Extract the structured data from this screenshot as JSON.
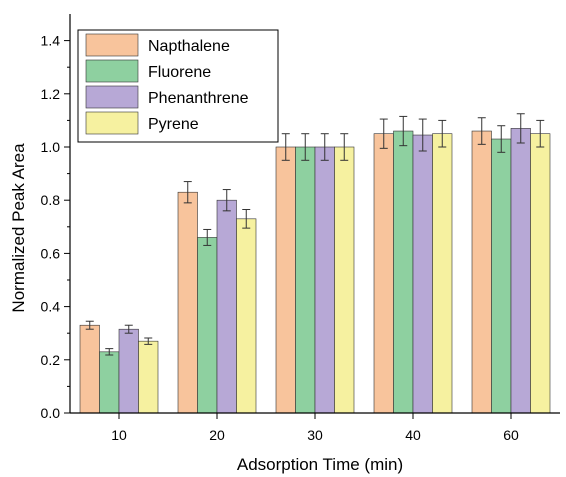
{
  "chart_data": {
    "type": "bar",
    "xlabel": "Adsorption Time (min)",
    "ylabel": "Normalized Peak Area",
    "categories": [
      "10",
      "20",
      "30",
      "40",
      "60"
    ],
    "ylim": [
      0,
      1.5
    ],
    "yticks": [
      0.0,
      0.2,
      0.4,
      0.6,
      0.8,
      1.0,
      1.2,
      1.4
    ],
    "ytick_labels": [
      "0.0",
      "0.2",
      "0.4",
      "0.6",
      "0.8",
      "1.0",
      "1.2",
      "1.4"
    ],
    "grid": false,
    "legend_position": "top-left",
    "error_bars": true,
    "series": [
      {
        "name": "Napthalene",
        "color": "#F8C49C",
        "values": [
          0.33,
          0.83,
          1.0,
          1.05,
          1.06
        ],
        "errors": [
          0.015,
          0.04,
          0.05,
          0.055,
          0.05
        ]
      },
      {
        "name": "Fluorene",
        "color": "#8ED0A0",
        "values": [
          0.23,
          0.66,
          1.0,
          1.06,
          1.03
        ],
        "errors": [
          0.012,
          0.03,
          0.05,
          0.055,
          0.05
        ]
      },
      {
        "name": "Phenanthrene",
        "color": "#B7A8D6",
        "values": [
          0.315,
          0.8,
          1.0,
          1.045,
          1.07
        ],
        "errors": [
          0.015,
          0.04,
          0.05,
          0.06,
          0.055
        ]
      },
      {
        "name": "Pyrene",
        "color": "#F6F1A0",
        "values": [
          0.27,
          0.73,
          1.0,
          1.05,
          1.05
        ],
        "errors": [
          0.012,
          0.035,
          0.05,
          0.05,
          0.05
        ]
      }
    ]
  }
}
